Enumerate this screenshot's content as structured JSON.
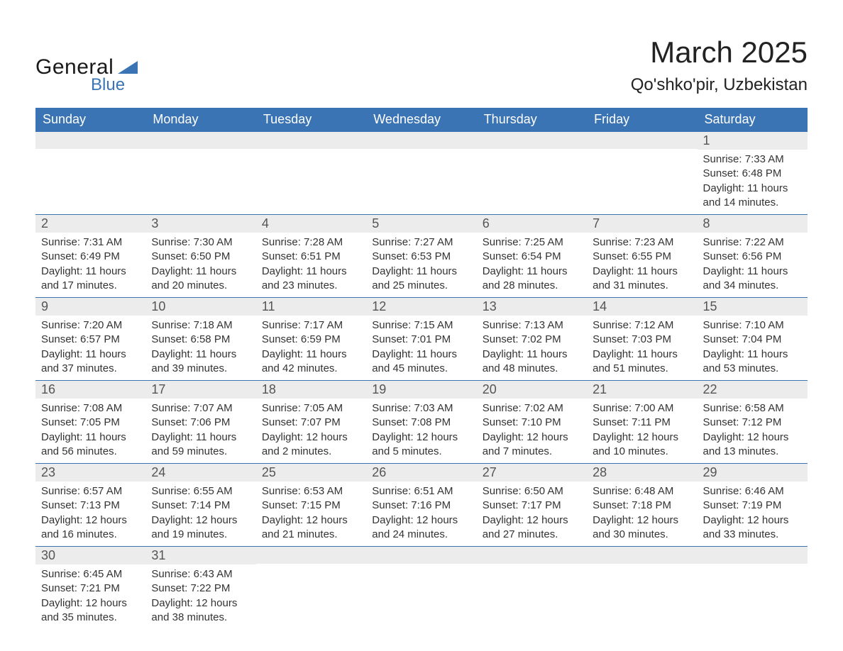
{
  "brand": {
    "word1": "General",
    "word2": "Blue"
  },
  "title": "March 2025",
  "location": "Qo'shko'pir, Uzbekistan",
  "colors": {
    "header_bg": "#3a74b4",
    "header_text": "#ffffff",
    "daynum_bg": "#ececec",
    "daynum_text": "#555555",
    "body_text": "#333333",
    "rule": "#3a74b4"
  },
  "font": {
    "family": "Arial",
    "title_size": 42,
    "location_size": 24,
    "dow_size": 18,
    "daynum_size": 18,
    "body_size": 15
  },
  "days_of_week": [
    "Sunday",
    "Monday",
    "Tuesday",
    "Wednesday",
    "Thursday",
    "Friday",
    "Saturday"
  ],
  "weeks": [
    [
      {
        "empty": true
      },
      {
        "empty": true
      },
      {
        "empty": true
      },
      {
        "empty": true
      },
      {
        "empty": true
      },
      {
        "empty": true
      },
      {
        "num": "1",
        "sunrise": "Sunrise: 7:33 AM",
        "sunset": "Sunset: 6:48 PM",
        "d1": "Daylight: 11 hours",
        "d2": "and 14 minutes."
      }
    ],
    [
      {
        "num": "2",
        "sunrise": "Sunrise: 7:31 AM",
        "sunset": "Sunset: 6:49 PM",
        "d1": "Daylight: 11 hours",
        "d2": "and 17 minutes."
      },
      {
        "num": "3",
        "sunrise": "Sunrise: 7:30 AM",
        "sunset": "Sunset: 6:50 PM",
        "d1": "Daylight: 11 hours",
        "d2": "and 20 minutes."
      },
      {
        "num": "4",
        "sunrise": "Sunrise: 7:28 AM",
        "sunset": "Sunset: 6:51 PM",
        "d1": "Daylight: 11 hours",
        "d2": "and 23 minutes."
      },
      {
        "num": "5",
        "sunrise": "Sunrise: 7:27 AM",
        "sunset": "Sunset: 6:53 PM",
        "d1": "Daylight: 11 hours",
        "d2": "and 25 minutes."
      },
      {
        "num": "6",
        "sunrise": "Sunrise: 7:25 AM",
        "sunset": "Sunset: 6:54 PM",
        "d1": "Daylight: 11 hours",
        "d2": "and 28 minutes."
      },
      {
        "num": "7",
        "sunrise": "Sunrise: 7:23 AM",
        "sunset": "Sunset: 6:55 PM",
        "d1": "Daylight: 11 hours",
        "d2": "and 31 minutes."
      },
      {
        "num": "8",
        "sunrise": "Sunrise: 7:22 AM",
        "sunset": "Sunset: 6:56 PM",
        "d1": "Daylight: 11 hours",
        "d2": "and 34 minutes."
      }
    ],
    [
      {
        "num": "9",
        "sunrise": "Sunrise: 7:20 AM",
        "sunset": "Sunset: 6:57 PM",
        "d1": "Daylight: 11 hours",
        "d2": "and 37 minutes."
      },
      {
        "num": "10",
        "sunrise": "Sunrise: 7:18 AM",
        "sunset": "Sunset: 6:58 PM",
        "d1": "Daylight: 11 hours",
        "d2": "and 39 minutes."
      },
      {
        "num": "11",
        "sunrise": "Sunrise: 7:17 AM",
        "sunset": "Sunset: 6:59 PM",
        "d1": "Daylight: 11 hours",
        "d2": "and 42 minutes."
      },
      {
        "num": "12",
        "sunrise": "Sunrise: 7:15 AM",
        "sunset": "Sunset: 7:01 PM",
        "d1": "Daylight: 11 hours",
        "d2": "and 45 minutes."
      },
      {
        "num": "13",
        "sunrise": "Sunrise: 7:13 AM",
        "sunset": "Sunset: 7:02 PM",
        "d1": "Daylight: 11 hours",
        "d2": "and 48 minutes."
      },
      {
        "num": "14",
        "sunrise": "Sunrise: 7:12 AM",
        "sunset": "Sunset: 7:03 PM",
        "d1": "Daylight: 11 hours",
        "d2": "and 51 minutes."
      },
      {
        "num": "15",
        "sunrise": "Sunrise: 7:10 AM",
        "sunset": "Sunset: 7:04 PM",
        "d1": "Daylight: 11 hours",
        "d2": "and 53 minutes."
      }
    ],
    [
      {
        "num": "16",
        "sunrise": "Sunrise: 7:08 AM",
        "sunset": "Sunset: 7:05 PM",
        "d1": "Daylight: 11 hours",
        "d2": "and 56 minutes."
      },
      {
        "num": "17",
        "sunrise": "Sunrise: 7:07 AM",
        "sunset": "Sunset: 7:06 PM",
        "d1": "Daylight: 11 hours",
        "d2": "and 59 minutes."
      },
      {
        "num": "18",
        "sunrise": "Sunrise: 7:05 AM",
        "sunset": "Sunset: 7:07 PM",
        "d1": "Daylight: 12 hours",
        "d2": "and 2 minutes."
      },
      {
        "num": "19",
        "sunrise": "Sunrise: 7:03 AM",
        "sunset": "Sunset: 7:08 PM",
        "d1": "Daylight: 12 hours",
        "d2": "and 5 minutes."
      },
      {
        "num": "20",
        "sunrise": "Sunrise: 7:02 AM",
        "sunset": "Sunset: 7:10 PM",
        "d1": "Daylight: 12 hours",
        "d2": "and 7 minutes."
      },
      {
        "num": "21",
        "sunrise": "Sunrise: 7:00 AM",
        "sunset": "Sunset: 7:11 PM",
        "d1": "Daylight: 12 hours",
        "d2": "and 10 minutes."
      },
      {
        "num": "22",
        "sunrise": "Sunrise: 6:58 AM",
        "sunset": "Sunset: 7:12 PM",
        "d1": "Daylight: 12 hours",
        "d2": "and 13 minutes."
      }
    ],
    [
      {
        "num": "23",
        "sunrise": "Sunrise: 6:57 AM",
        "sunset": "Sunset: 7:13 PM",
        "d1": "Daylight: 12 hours",
        "d2": "and 16 minutes."
      },
      {
        "num": "24",
        "sunrise": "Sunrise: 6:55 AM",
        "sunset": "Sunset: 7:14 PM",
        "d1": "Daylight: 12 hours",
        "d2": "and 19 minutes."
      },
      {
        "num": "25",
        "sunrise": "Sunrise: 6:53 AM",
        "sunset": "Sunset: 7:15 PM",
        "d1": "Daylight: 12 hours",
        "d2": "and 21 minutes."
      },
      {
        "num": "26",
        "sunrise": "Sunrise: 6:51 AM",
        "sunset": "Sunset: 7:16 PM",
        "d1": "Daylight: 12 hours",
        "d2": "and 24 minutes."
      },
      {
        "num": "27",
        "sunrise": "Sunrise: 6:50 AM",
        "sunset": "Sunset: 7:17 PM",
        "d1": "Daylight: 12 hours",
        "d2": "and 27 minutes."
      },
      {
        "num": "28",
        "sunrise": "Sunrise: 6:48 AM",
        "sunset": "Sunset: 7:18 PM",
        "d1": "Daylight: 12 hours",
        "d2": "and 30 minutes."
      },
      {
        "num": "29",
        "sunrise": "Sunrise: 6:46 AM",
        "sunset": "Sunset: 7:19 PM",
        "d1": "Daylight: 12 hours",
        "d2": "and 33 minutes."
      }
    ],
    [
      {
        "num": "30",
        "sunrise": "Sunrise: 6:45 AM",
        "sunset": "Sunset: 7:21 PM",
        "d1": "Daylight: 12 hours",
        "d2": "and 35 minutes."
      },
      {
        "num": "31",
        "sunrise": "Sunrise: 6:43 AM",
        "sunset": "Sunset: 7:22 PM",
        "d1": "Daylight: 12 hours",
        "d2": "and 38 minutes."
      },
      {
        "empty": true
      },
      {
        "empty": true
      },
      {
        "empty": true
      },
      {
        "empty": true
      },
      {
        "empty": true
      }
    ]
  ]
}
